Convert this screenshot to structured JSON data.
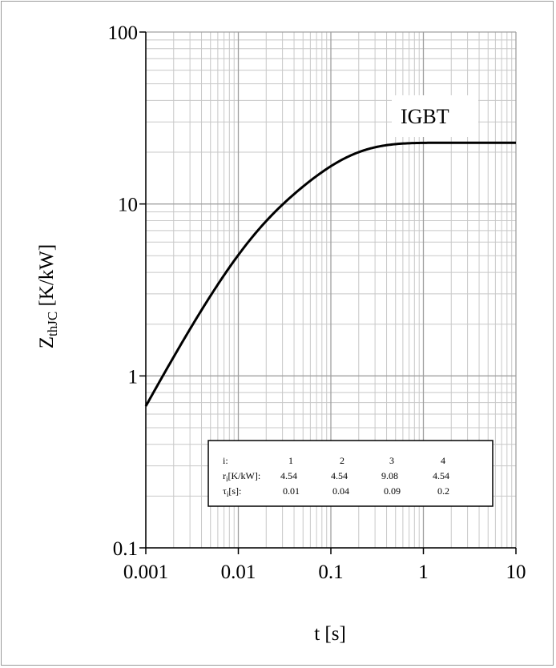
{
  "chart_data": {
    "type": "line",
    "title": "",
    "xlabel": "t [s]",
    "ylabel_main": "Z",
    "ylabel_sub": "thJC",
    "ylabel_rest": " [K/kW]",
    "xscale": "log",
    "yscale": "log",
    "xlim": [
      0.001,
      10
    ],
    "ylim": [
      0.1,
      100
    ],
    "grid": true,
    "x_ticks": [
      0.001,
      0.01,
      0.1,
      1,
      10
    ],
    "x_tick_labels": [
      "0.001",
      "0.01",
      "0.1",
      "1",
      "10"
    ],
    "y_ticks": [
      0.1,
      1,
      10,
      100
    ],
    "y_tick_labels": [
      "0.1",
      "1",
      "10",
      "100"
    ],
    "series": [
      {
        "name": "IGBT",
        "r": [
          4.54,
          4.54,
          9.08,
          4.54
        ],
        "tau": [
          0.01,
          0.04,
          0.09,
          0.2
        ]
      }
    ],
    "table": {
      "i_label": "i:",
      "r_label_main": "r",
      "r_label_sub": "i",
      "r_label_rest": "[K/kW]:",
      "tau_label_main": "τ",
      "tau_label_sub": "i",
      "tau_label_rest": "[s]:",
      "i": [
        "1",
        "2",
        "3",
        "4"
      ],
      "r": [
        "4.54",
        "4.54",
        "9.08",
        "4.54"
      ],
      "tau": [
        "0.01",
        "0.04",
        "0.09",
        "0.2"
      ]
    },
    "colors": {
      "curve": "#000000",
      "grid": "#c8c8c8",
      "axis": "#000000"
    }
  }
}
